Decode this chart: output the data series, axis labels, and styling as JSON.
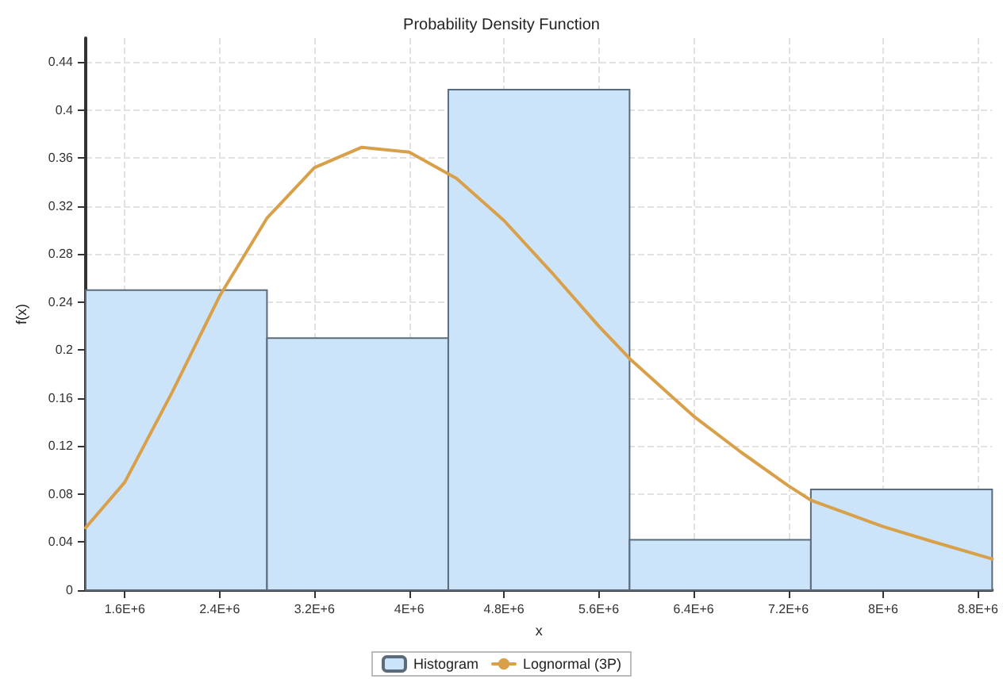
{
  "chart_data": {
    "type": "histogram",
    "title": "Probability Density Function",
    "xlabel": "x",
    "ylabel": "f(x)",
    "bins": [
      1270000,
      2800000,
      4330000,
      5860000,
      7390000,
      8920000
    ],
    "series": [
      {
        "name": "Histogram",
        "color": "#cce4fa",
        "values": [
          0.25,
          0.21,
          0.417,
          0.042,
          0.084
        ]
      },
      {
        "name": "Lognormal (3P)",
        "type": "line",
        "color": "#d9a04a",
        "x": [
          1270000,
          1600000,
          2000000,
          2400000,
          2800000,
          3200000,
          3600000,
          4000000,
          4400000,
          4800000,
          5200000,
          5600000,
          5860000,
          6400000,
          6800000,
          7200000,
          7390000,
          8000000,
          8400000,
          8920000
        ],
        "values": [
          0.052,
          0.09,
          0.165,
          0.245,
          0.31,
          0.352,
          0.369,
          0.365,
          0.343,
          0.308,
          0.265,
          0.22,
          0.193,
          0.145,
          0.115,
          0.087,
          0.075,
          0.053,
          0.041,
          0.026
        ]
      }
    ],
    "xlim": [
      1270000,
      8920000
    ],
    "xticks": [
      {
        "value": 1600000,
        "label": "1.6E+6"
      },
      {
        "value": 2400000,
        "label": "2.4E+6"
      },
      {
        "value": 3200000,
        "label": "3.2E+6"
      },
      {
        "value": 4000000,
        "label": "4E+6"
      },
      {
        "value": 4800000,
        "label": "4.8E+6"
      },
      {
        "value": 5600000,
        "label": "5.6E+6"
      },
      {
        "value": 6400000,
        "label": "6.4E+6"
      },
      {
        "value": 7200000,
        "label": "7.2E+6"
      },
      {
        "value": 8000000,
        "label": "8E+6"
      },
      {
        "value": 8800000,
        "label": "8.8E+6"
      }
    ],
    "ylim": [
      0,
      0.46
    ],
    "yticks": [
      0,
      0.04,
      0.08,
      0.12,
      0.16,
      0.2,
      0.24,
      0.28,
      0.32,
      0.36,
      0.4,
      0.44
    ],
    "grid": true,
    "legend": "bottom",
    "marker": "none",
    "line_style": "solid"
  }
}
